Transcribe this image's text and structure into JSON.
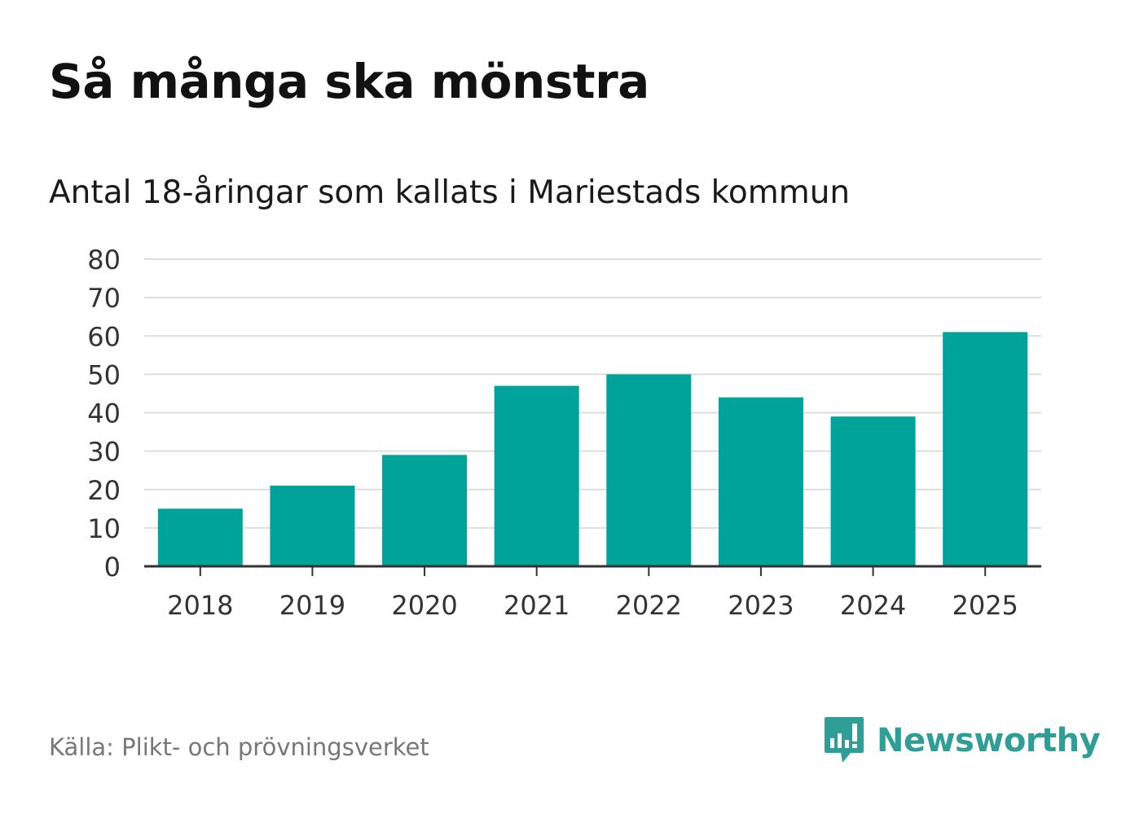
{
  "title": "Så många ska mönstra",
  "subtitle": "Antal 18-åringar som kallats i Mariestads kommun",
  "source": "Källa: Plikt- och prövningsverket",
  "brand": {
    "name": "Newsworthy",
    "icon": "newsworthy-chart-bubble-icon",
    "color": "#2f9e97"
  },
  "colors": {
    "bar": "#00a39a",
    "grid": "#dddddd",
    "axis": "#333333",
    "tick_text": "#333333"
  },
  "chart_data": {
    "type": "bar",
    "title": "Så många ska mönstra",
    "subtitle": "Antal 18-åringar som kallats i Mariestads kommun",
    "xlabel": "",
    "ylabel": "",
    "categories": [
      "2018",
      "2019",
      "2020",
      "2021",
      "2022",
      "2023",
      "2024",
      "2025"
    ],
    "values": [
      15,
      21,
      29,
      47,
      50,
      44,
      39,
      61
    ],
    "ylim": [
      0,
      80
    ],
    "yticks": [
      0,
      10,
      20,
      30,
      40,
      50,
      60,
      70,
      80
    ],
    "grid": true,
    "legend": "none"
  }
}
